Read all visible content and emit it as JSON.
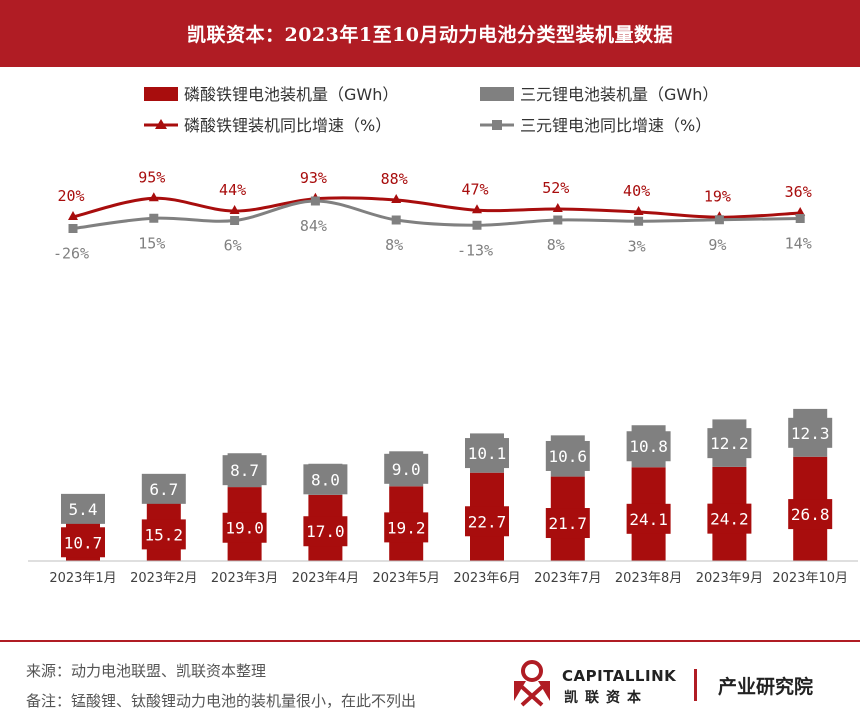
{
  "header": {
    "title": "凯联资本：2023年1至10月动力电池分类型装机量数据"
  },
  "chart_data": {
    "type": "bar",
    "stacked": true,
    "categories": [
      "2023年1月",
      "2023年2月",
      "2023年3月",
      "2023年4月",
      "2023年5月",
      "2023年6月",
      "2023年7月",
      "2023年8月",
      "2023年9月",
      "2023年10月"
    ],
    "series": [
      {
        "name": "磷酸铁锂电池装机量（GWh）",
        "values": [
          10.7,
          15.2,
          19.0,
          17.0,
          19.2,
          22.7,
          21.7,
          24.1,
          24.2,
          26.8
        ],
        "color": "#a80d0d"
      },
      {
        "name": "三元锂电池装机量（GWh）",
        "values": [
          5.4,
          6.7,
          8.7,
          8.0,
          9.0,
          10.1,
          10.6,
          10.8,
          12.2,
          12.3
        ],
        "color": "#808080"
      }
    ],
    "growth_series": [
      {
        "name": "磷酸铁锂装机同比增速（%）",
        "values": [
          20,
          95,
          44,
          93,
          88,
          47,
          52,
          40,
          19,
          36
        ],
        "labels": [
          "20%",
          "95%",
          "44%",
          "93%",
          "88%",
          "47%",
          "52%",
          "40%",
          "19%",
          "36%"
        ],
        "color": "#a80d0d",
        "marker": "triangle"
      },
      {
        "name": "三元锂电池同比增速（%）",
        "values": [
          -26,
          15,
          6,
          84,
          8,
          -13,
          8,
          3,
          9,
          14
        ],
        "labels": [
          "-26%",
          "15%",
          "6%",
          "84%",
          "8%",
          "-13%",
          "8%",
          "3%",
          "9%",
          "14%"
        ],
        "color": "#808080",
        "marker": "square"
      }
    ],
    "bar_labels": {
      "lfp": [
        "10.7",
        "15.2",
        "19.0",
        "17.0",
        "19.2",
        "22.7",
        "21.7",
        "24.1",
        "24.2",
        "26.8"
      ],
      "ncm": [
        "5.4",
        "6.7",
        "8.7",
        "8.0",
        "9.0",
        "10.1",
        "10.6",
        "10.8",
        "12.2",
        "12.3"
      ]
    },
    "legend_placement": "top",
    "grid": false
  },
  "footer": {
    "source": "来源：动力电池联盟、凯联资本整理",
    "note": "备注：锰酸锂、钛酸锂动力电池的装机量很小，在此不列出"
  },
  "brand": {
    "en": "CAPITALLINK",
    "cn": "凯联资本",
    "tag": "产业研究院"
  }
}
